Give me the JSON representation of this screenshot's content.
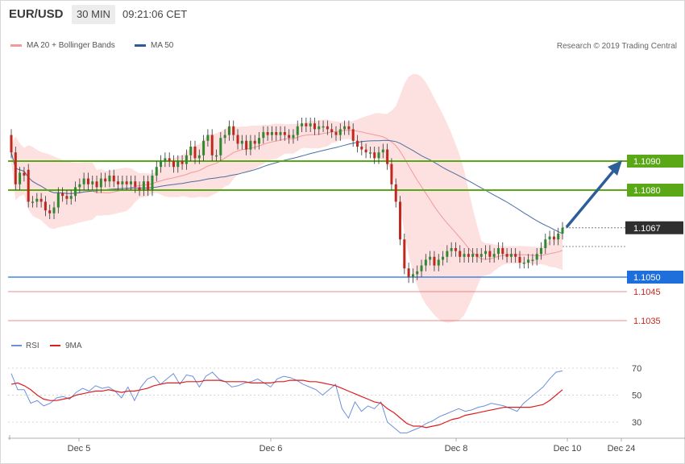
{
  "header": {
    "symbol": "EUR/USD",
    "timeframe": "30 MIN",
    "time": "09:21:06 CET"
  },
  "legend": {
    "ma20_label": "MA 20 + Bollinger Bands",
    "ma50_label": "MA 50",
    "credit": "Research © 2019 Trading Central"
  },
  "colors": {
    "bull": "#2f8a2f",
    "bear": "#c0281e",
    "band": "#fde0e0",
    "ma20": "#f29a9a",
    "ma50": "#4a6fa5",
    "green_level": "#5aa818",
    "blue_level": "#1e6fdc",
    "red_level": "#e06666",
    "arrow": "#2c5f9a",
    "rsi": "#6c8fdc",
    "ma9": "#dd1e1e"
  },
  "chart_data": [
    {
      "type": "candlestick",
      "title": "EUR/USD 30 MIN",
      "x_labels": [
        "Dec 5",
        "Dec 6",
        "Dec 8",
        "Dec 10",
        "Dec 24"
      ],
      "levels": [
        {
          "label": "1.1090",
          "value": 1.109,
          "kind": "resistance"
        },
        {
          "label": "1.1080",
          "value": 1.108,
          "kind": "resistance"
        },
        {
          "label": "1.1067",
          "value": 1.1067,
          "kind": "last price"
        },
        {
          "label": "1.1050",
          "value": 1.105,
          "kind": "pivot"
        },
        {
          "label": "1.1045",
          "value": 1.1045,
          "kind": "support"
        },
        {
          "label": "1.1035",
          "value": 1.1035,
          "kind": "support"
        }
      ],
      "bias": "bullish, target 1.1090",
      "series": [
        {
          "name": "MA 20 + Bollinger Bands"
        },
        {
          "name": "MA 50"
        }
      ],
      "candles": [
        [
          1.1099,
          1.1093
        ],
        [
          1.1093,
          1.1082
        ],
        [
          1.1082,
          1.1086
        ],
        [
          1.1086,
          1.1085
        ],
        [
          1.1087,
          1.1076
        ],
        [
          1.1076,
          1.1076
        ],
        [
          1.1076,
          1.1077
        ],
        [
          1.1077,
          1.1076
        ],
        [
          1.1076,
          1.1073
        ],
        [
          1.1073,
          1.1072
        ],
        [
          1.1072,
          1.1074
        ],
        [
          1.1074,
          1.1079
        ],
        [
          1.1079,
          1.1078
        ],
        [
          1.1078,
          1.1077
        ],
        [
          1.1077,
          1.1078
        ],
        [
          1.1078,
          1.1081
        ],
        [
          1.1081,
          1.1082
        ],
        [
          1.1082,
          1.1084
        ],
        [
          1.1084,
          1.1082
        ],
        [
          1.1082,
          1.1083
        ],
        [
          1.1083,
          1.1081
        ],
        [
          1.1081,
          1.1084
        ],
        [
          1.1084,
          1.1083
        ],
        [
          1.1083,
          1.1085
        ],
        [
          1.1085,
          1.1083
        ],
        [
          1.1083,
          1.1082
        ],
        [
          1.1082,
          1.1083
        ],
        [
          1.1083,
          1.1082
        ],
        [
          1.1082,
          1.1083
        ],
        [
          1.1083,
          1.1081
        ],
        [
          1.1081,
          1.108
        ],
        [
          1.108,
          1.1083
        ],
        [
          1.1083,
          1.108
        ],
        [
          1.108,
          1.1085
        ],
        [
          1.1085,
          1.1088
        ],
        [
          1.1088,
          1.109
        ],
        [
          1.109,
          1.1091
        ],
        [
          1.1091,
          1.109
        ],
        [
          1.109,
          1.1088
        ],
        [
          1.1088,
          1.109
        ],
        [
          1.109,
          1.1089
        ],
        [
          1.1089,
          1.1092
        ],
        [
          1.1092,
          1.1095
        ],
        [
          1.1095,
          1.1091
        ],
        [
          1.1091,
          1.1092
        ],
        [
          1.1092,
          1.1097
        ],
        [
          1.1097,
          1.1099
        ],
        [
          1.1099,
          1.1092
        ],
        [
          1.1092,
          1.1092
        ],
        [
          1.1092,
          1.1098
        ],
        [
          1.1098,
          1.1099
        ],
        [
          1.1099,
          1.1102
        ],
        [
          1.1102,
          1.1099
        ],
        [
          1.1099,
          1.1096
        ],
        [
          1.1096,
          1.1097
        ],
        [
          1.1097,
          1.1094
        ],
        [
          1.1094,
          1.1097
        ],
        [
          1.1097,
          1.1096
        ],
        [
          1.1096,
          1.1098
        ],
        [
          1.1098,
          1.11
        ],
        [
          1.11,
          1.1099
        ],
        [
          1.1099,
          1.11
        ],
        [
          1.11,
          1.1099
        ],
        [
          1.1099,
          1.11
        ],
        [
          1.11,
          1.1099
        ],
        [
          1.1099,
          1.1098
        ],
        [
          1.1098,
          1.1099
        ],
        [
          1.1099,
          1.1102
        ],
        [
          1.1102,
          1.1103
        ],
        [
          1.1103,
          1.1102
        ],
        [
          1.1102,
          1.1103
        ],
        [
          1.1103,
          1.1101
        ],
        [
          1.1101,
          1.1102
        ],
        [
          1.1102,
          1.1102
        ],
        [
          1.1102,
          1.1101
        ],
        [
          1.1101,
          1.11
        ],
        [
          1.11,
          1.1099
        ],
        [
          1.1099,
          1.1101
        ],
        [
          1.1101,
          1.1102
        ],
        [
          1.1102,
          1.1101
        ],
        [
          1.1101,
          1.1097
        ],
        [
          1.1097,
          1.1095
        ],
        [
          1.1095,
          1.1094
        ],
        [
          1.1094,
          1.1093
        ],
        [
          1.1093,
          1.1093
        ],
        [
          1.1093,
          1.1091
        ],
        [
          1.1091,
          1.1093
        ],
        [
          1.1093,
          1.1094
        ],
        [
          1.1094,
          1.1089
        ],
        [
          1.1089,
          1.1082
        ],
        [
          1.1082,
          1.1076
        ],
        [
          1.1076,
          1.1063
        ],
        [
          1.1063,
          1.1053
        ],
        [
          1.1053,
          1.105
        ],
        [
          1.105,
          1.1051
        ],
        [
          1.1051,
          1.1052
        ],
        [
          1.1052,
          1.1054
        ],
        [
          1.1054,
          1.1056
        ],
        [
          1.1056,
          1.1057
        ],
        [
          1.1057,
          1.1054
        ],
        [
          1.1054,
          1.1056
        ],
        [
          1.1056,
          1.1057
        ],
        [
          1.1057,
          1.1059
        ],
        [
          1.1059,
          1.106
        ],
        [
          1.106,
          1.1059
        ],
        [
          1.1059,
          1.1057
        ],
        [
          1.1057,
          1.1058
        ],
        [
          1.1058,
          1.1057
        ],
        [
          1.1057,
          1.1058
        ],
        [
          1.1058,
          1.1057
        ],
        [
          1.1057,
          1.1058
        ],
        [
          1.1058,
          1.1059
        ],
        [
          1.1059,
          1.1057
        ],
        [
          1.1057,
          1.1058
        ],
        [
          1.1058,
          1.106
        ],
        [
          1.106,
          1.1058
        ],
        [
          1.1058,
          1.1057
        ],
        [
          1.1057,
          1.1058
        ],
        [
          1.1058,
          1.1057
        ],
        [
          1.1057,
          1.1055
        ],
        [
          1.1055,
          1.1055
        ],
        [
          1.1055,
          1.1056
        ],
        [
          1.1056,
          1.1056
        ],
        [
          1.1056,
          1.1058
        ],
        [
          1.1058,
          1.106
        ],
        [
          1.106,
          1.1063
        ],
        [
          1.1063,
          1.1064
        ],
        [
          1.1064,
          1.1063
        ],
        [
          1.1063,
          1.1065
        ],
        [
          1.1065,
          1.1067
        ]
      ]
    },
    {
      "type": "line",
      "title": "",
      "x_labels": [
        "Dec 5",
        "Dec 6",
        "Dec 8",
        "Dec 10",
        "Dec 24"
      ],
      "y_ticks": [
        70,
        50,
        30
      ],
      "series": [
        {
          "name": "RSI",
          "values": [
            66,
            54,
            54,
            44,
            46,
            42,
            44,
            48,
            49,
            47,
            52,
            55,
            53,
            57,
            55,
            56,
            53,
            48,
            56,
            46,
            56,
            62,
            64,
            58,
            62,
            66,
            58,
            65,
            64,
            56,
            64,
            67,
            62,
            60,
            56,
            57,
            59,
            60,
            62,
            59,
            56,
            62,
            64,
            63,
            61,
            58,
            56,
            54,
            50,
            54,
            58,
            40,
            33,
            45,
            38,
            42,
            40,
            45,
            30,
            26,
            22,
            22,
            24,
            26,
            29,
            31,
            34,
            36,
            38,
            40,
            38,
            39,
            41,
            42,
            44,
            43,
            42,
            40,
            38,
            44,
            48,
            52,
            56,
            62,
            67,
            68
          ]
        },
        {
          "name": "9MA",
          "values": [
            58,
            59,
            57,
            54,
            50,
            47,
            46,
            46,
            47,
            48,
            50,
            51,
            52,
            53,
            53,
            54,
            53,
            52,
            53,
            53,
            54,
            55,
            57,
            58,
            59,
            59,
            59,
            60,
            60,
            60,
            61,
            61,
            61,
            60,
            60,
            60,
            60,
            59,
            59,
            59,
            59,
            60,
            60,
            61,
            61,
            61,
            60,
            60,
            59,
            58,
            57,
            55,
            53,
            51,
            49,
            47,
            45,
            44,
            40,
            37,
            33,
            29,
            27,
            27,
            26,
            27,
            28,
            30,
            32,
            33,
            35,
            36,
            37,
            38,
            39,
            40,
            41,
            41,
            41,
            41,
            41,
            42,
            43,
            46,
            50,
            54
          ]
        }
      ]
    }
  ]
}
